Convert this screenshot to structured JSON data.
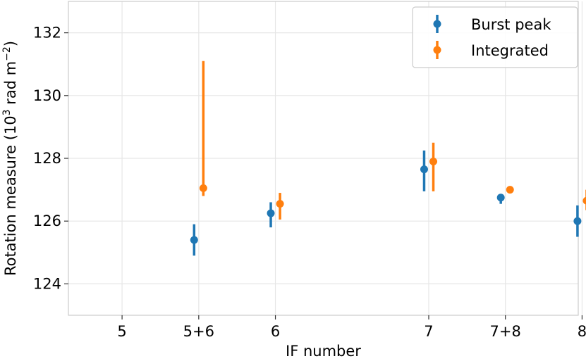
{
  "chart_data": {
    "type": "scatter",
    "xlabel": "IF number",
    "ylabel_main": "Rotation measure (10",
    "ylabel_exp1": "3",
    "ylabel_mid": " rad m",
    "ylabel_exp2": "−2",
    "ylabel_end": ")",
    "grid": true,
    "legend_placement": "top-right",
    "xlim": [
      -0.7,
      5.95
    ],
    "ylim": [
      123.0,
      133.0
    ],
    "x_ticks": [
      {
        "value": 0,
        "label": "5"
      },
      {
        "value": 1,
        "label": "5+6"
      },
      {
        "value": 2,
        "label": "6"
      },
      {
        "value": 4,
        "label": "7"
      },
      {
        "value": 5,
        "label": "7+8"
      },
      {
        "value": 6,
        "label": "8"
      }
    ],
    "y_ticks": [
      {
        "value": 124,
        "label": "124"
      },
      {
        "value": 126,
        "label": "126"
      },
      {
        "value": 128,
        "label": "128"
      },
      {
        "value": 130,
        "label": "130"
      },
      {
        "value": 132,
        "label": "132"
      }
    ],
    "series": [
      {
        "name": "Burst peak",
        "color": "#1f77b4",
        "offset": -0.06,
        "points": [
          {
            "x": 1,
            "y": 125.4,
            "ylo": 124.9,
            "yhi": 125.9
          },
          {
            "x": 2,
            "y": 126.25,
            "ylo": 125.8,
            "yhi": 126.6
          },
          {
            "x": 4,
            "y": 127.65,
            "ylo": 126.95,
            "yhi": 128.25
          },
          {
            "x": 5,
            "y": 126.75,
            "ylo": 126.55,
            "yhi": 126.85
          },
          {
            "x": 6,
            "y": 126.0,
            "ylo": 125.5,
            "yhi": 126.5
          }
        ]
      },
      {
        "name": "Integrated",
        "color": "#ff7f0e",
        "offset": 0.06,
        "points": [
          {
            "x": 1,
            "y": 127.05,
            "ylo": 126.8,
            "yhi": 131.1
          },
          {
            "x": 2,
            "y": 126.55,
            "ylo": 126.05,
            "yhi": 126.9
          },
          {
            "x": 4,
            "y": 127.9,
            "ylo": 126.95,
            "yhi": 128.5
          },
          {
            "x": 5,
            "y": 127.0,
            "ylo": 126.9,
            "yhi": 127.1
          },
          {
            "x": 6,
            "y": 126.65,
            "ylo": 126.35,
            "yhi": 127.0
          }
        ]
      }
    ]
  }
}
